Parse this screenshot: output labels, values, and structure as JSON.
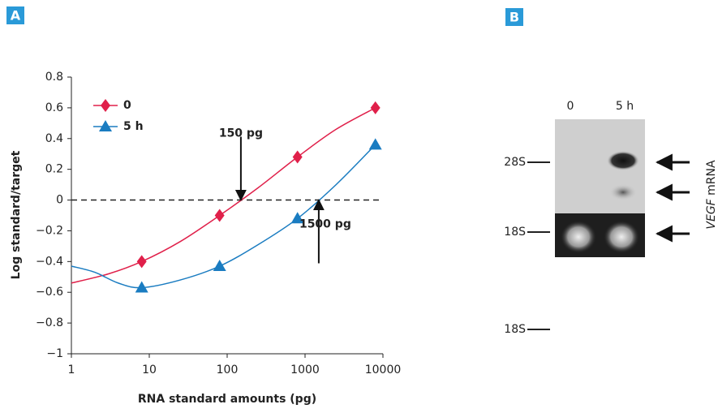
{
  "panel_labels": [
    "A",
    "B"
  ],
  "chart_data": {
    "type": "line",
    "log_x": true,
    "xlabel": "RNA standard amounts (pg)",
    "ylabel": "Log standard/target",
    "xlim": [
      1,
      10000
    ],
    "xticks": [
      1,
      10,
      100,
      1000,
      10000
    ],
    "ylim": [
      -1,
      0.8
    ],
    "yticks": [
      {
        "value": -1,
        "label": "−1"
      },
      {
        "value": -0.8,
        "label": "−0.8"
      },
      {
        "value": -0.6,
        "label": "−0.6"
      },
      {
        "value": -0.4,
        "label": "−0.4"
      },
      {
        "value": -0.2,
        "label": "−0.2"
      },
      0,
      0.2,
      0.4,
      0.6,
      0.8
    ],
    "legend": "upper left",
    "reference_line": 0,
    "series": [
      {
        "name": "0",
        "color": "#e0204a",
        "marker": "diamond",
        "x": [
          8,
          80,
          800,
          8000
        ],
        "values": [
          -0.4,
          -0.1,
          0.28,
          0.6
        ],
        "fit_x": [
          1,
          3,
          8,
          25,
          80,
          250,
          800,
          2500,
          8000
        ],
        "fit_y": [
          -0.54,
          -0.48,
          -0.4,
          -0.27,
          -0.1,
          0.08,
          0.28,
          0.46,
          0.6
        ]
      },
      {
        "name": "5 h",
        "color": "#1a7cc1",
        "marker": "triangle",
        "x": [
          8,
          80,
          800,
          8000
        ],
        "values": [
          -0.57,
          -0.43,
          -0.12,
          0.36
        ],
        "fit_x": [
          1,
          2,
          4,
          8,
          25,
          80,
          250,
          800,
          2500,
          8000
        ],
        "fit_y": [
          -0.43,
          -0.47,
          -0.54,
          -0.57,
          -0.52,
          -0.43,
          -0.29,
          -0.12,
          0.1,
          0.36
        ]
      }
    ],
    "annotations": [
      {
        "text": "150 pg",
        "x": 150,
        "y": 0,
        "direction": "down"
      },
      {
        "text": "1500 pg",
        "x": 1500,
        "y": 0,
        "direction": "up"
      }
    ]
  },
  "gel": {
    "lanes": [
      "0",
      "5 h"
    ],
    "markers": [
      "28S",
      "18S",
      "18S"
    ],
    "side_label": {
      "gene": "VEGF",
      "text": "mRNA"
    }
  }
}
